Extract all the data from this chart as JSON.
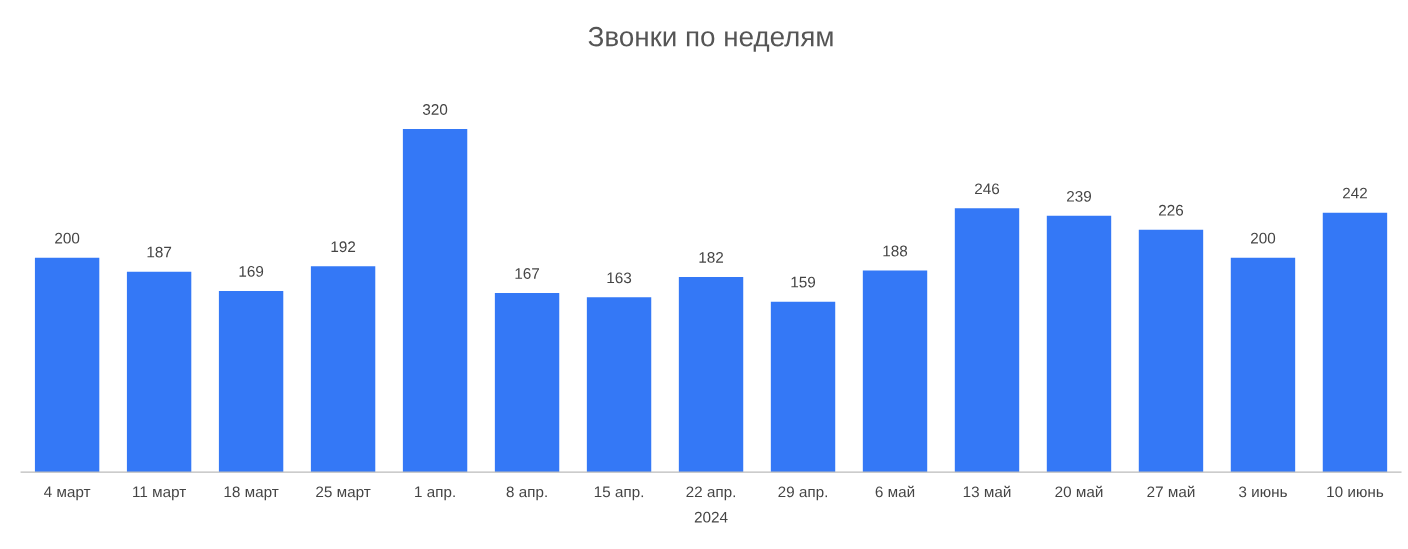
{
  "chart_data": {
    "type": "bar",
    "title": "Звонки по неделям",
    "xlabel": "2024",
    "categories": [
      "4 март",
      "11 март",
      "18 март",
      "25 март",
      "1 апр.",
      "8 апр.",
      "15 апр.",
      "22 апр.",
      "29 апр.",
      "6 май",
      "13 май",
      "20 май",
      "27 май",
      "3 июнь",
      "10 июнь"
    ],
    "values": [
      200,
      187,
      169,
      192,
      320,
      167,
      163,
      182,
      159,
      188,
      246,
      239,
      226,
      200,
      242
    ],
    "color": "#3478f6",
    "data_labels": true,
    "grid": false
  }
}
